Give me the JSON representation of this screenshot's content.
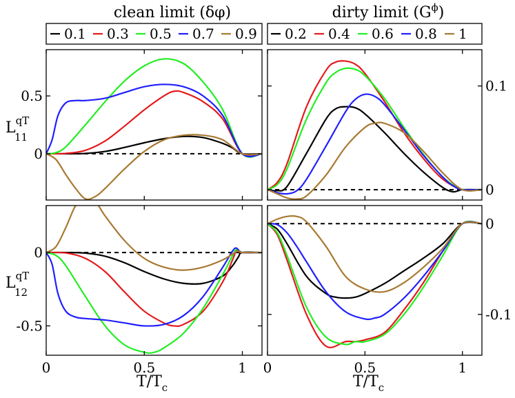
{
  "figure": {
    "left_title": "clean limit (δφ)",
    "right_title": "dirty limit (G",
    "right_title_sup": "ϕ",
    "right_title_end": ")",
    "xlabel_main": "T/T",
    "xlabel_sub": "c",
    "ylabel_top_main": "L",
    "ylabel_top_sup": "qT",
    "ylabel_top_sub": "11",
    "ylabel_bot_main": "L",
    "ylabel_bot_sup": "qT",
    "ylabel_bot_sub": "12"
  },
  "legend_left": [
    {
      "label": "0.1",
      "color": "#000000"
    },
    {
      "label": "0.3",
      "color": "#e41a1c"
    },
    {
      "label": "0.5",
      "color": "#22ee22"
    },
    {
      "label": "0.7",
      "color": "#1f1fff"
    },
    {
      "label": "0.9",
      "color": "#a87932"
    }
  ],
  "legend_right": [
    {
      "label": "0.2",
      "color": "#000000"
    },
    {
      "label": "0.4",
      "color": "#e41a1c"
    },
    {
      "label": "0.6",
      "color": "#22ee22"
    },
    {
      "label": "0.8",
      "color": "#1f1fff"
    },
    {
      "label": "1",
      "color": "#a87932"
    }
  ],
  "chart_data": [
    {
      "type": "line",
      "panel": "top-left",
      "xlim": [
        0,
        1.1
      ],
      "ylim": [
        -0.4,
        0.9
      ],
      "xticks": [
        {
          "v": 0,
          "label": "0"
        },
        {
          "v": 0.5,
          "label": "0.5"
        },
        {
          "v": 1,
          "label": "1"
        }
      ],
      "yticks": [
        {
          "v": 0,
          "label": "0"
        },
        {
          "v": 0.5,
          "label": "0.5"
        }
      ],
      "yaxis_side": "left",
      "show_xtick_labels": false,
      "zero_line": true,
      "series": [
        {
          "name": "0.1",
          "color": "#000000",
          "x": [
            0,
            0.1,
            0.2,
            0.3,
            0.4,
            0.5,
            0.6,
            0.7,
            0.8,
            0.9,
            0.95,
            1.0,
            1.1
          ],
          "y": [
            0,
            0,
            0.003,
            0.02,
            0.055,
            0.095,
            0.13,
            0.15,
            0.14,
            0.09,
            0.05,
            0,
            0
          ]
        },
        {
          "name": "0.3",
          "color": "#e41a1c",
          "x": [
            0,
            0.1,
            0.2,
            0.3,
            0.4,
            0.5,
            0.6,
            0.65,
            0.7,
            0.8,
            0.9,
            1.0,
            1.1
          ],
          "y": [
            0,
            0.003,
            0.03,
            0.11,
            0.24,
            0.38,
            0.5,
            0.54,
            0.53,
            0.45,
            0.3,
            0,
            0
          ]
        },
        {
          "name": "0.5",
          "color": "#22ee22",
          "x": [
            0,
            0.05,
            0.1,
            0.2,
            0.3,
            0.4,
            0.5,
            0.6,
            0.7,
            0.8,
            0.9,
            1.0,
            1.1
          ],
          "y": [
            0,
            0.01,
            0.06,
            0.25,
            0.45,
            0.63,
            0.76,
            0.82,
            0.78,
            0.62,
            0.38,
            0,
            0
          ]
        },
        {
          "name": "0.7",
          "color": "#1f1fff",
          "x": [
            0,
            0.03,
            0.06,
            0.1,
            0.15,
            0.2,
            0.3,
            0.4,
            0.5,
            0.6,
            0.7,
            0.8,
            0.9,
            1.0,
            1.1
          ],
          "y": [
            0,
            0.12,
            0.33,
            0.44,
            0.46,
            0.46,
            0.48,
            0.53,
            0.58,
            0.6,
            0.58,
            0.5,
            0.33,
            0,
            0
          ]
        },
        {
          "name": "0.9",
          "color": "#a87932",
          "x": [
            0,
            0.05,
            0.1,
            0.15,
            0.2,
            0.25,
            0.3,
            0.4,
            0.5,
            0.6,
            0.7,
            0.8,
            0.9,
            1.0,
            1.1
          ],
          "y": [
            0,
            -0.05,
            -0.18,
            -0.3,
            -0.39,
            -0.37,
            -0.3,
            -0.13,
            0.02,
            0.12,
            0.16,
            0.16,
            0.12,
            0,
            0
          ]
        }
      ]
    },
    {
      "type": "line",
      "panel": "top-right",
      "xlim": [
        0,
        1.1
      ],
      "ylim": [
        -0.01,
        0.135
      ],
      "xticks": [
        {
          "v": 0,
          "label": "0"
        },
        {
          "v": 0.5,
          "label": "0.5"
        },
        {
          "v": 1,
          "label": "1"
        }
      ],
      "yticks": [
        {
          "v": 0,
          "label": "0"
        },
        {
          "v": 0.1,
          "label": "0.1"
        }
      ],
      "yaxis_side": "right",
      "show_xtick_labels": false,
      "zero_line": true,
      "series": [
        {
          "name": "0.2",
          "color": "#000000",
          "x": [
            0,
            0.05,
            0.1,
            0.2,
            0.3,
            0.35,
            0.4,
            0.45,
            0.5,
            0.6,
            0.7,
            0.8,
            0.9,
            0.95,
            0.98,
            1.0,
            1.1
          ],
          "y": [
            0,
            -0.001,
            0.003,
            0.035,
            0.068,
            0.078,
            0.08,
            0.079,
            0.073,
            0.055,
            0.035,
            0.017,
            0.002,
            -0.002,
            -0.001,
            0,
            0
          ]
        },
        {
          "name": "0.4",
          "color": "#e41a1c",
          "x": [
            0,
            0.05,
            0.1,
            0.2,
            0.3,
            0.35,
            0.4,
            0.45,
            0.5,
            0.6,
            0.7,
            0.8,
            0.9,
            1.0,
            1.1
          ],
          "y": [
            0,
            0.007,
            0.025,
            0.08,
            0.115,
            0.123,
            0.124,
            0.121,
            0.112,
            0.085,
            0.055,
            0.03,
            0.01,
            0,
            0
          ]
        },
        {
          "name": "0.6",
          "color": "#22ee22",
          "x": [
            0,
            0.05,
            0.1,
            0.2,
            0.3,
            0.35,
            0.4,
            0.45,
            0.5,
            0.6,
            0.7,
            0.8,
            0.9,
            1.0,
            1.1
          ],
          "y": [
            0,
            0.005,
            0.02,
            0.068,
            0.103,
            0.113,
            0.117,
            0.116,
            0.11,
            0.088,
            0.06,
            0.034,
            0.012,
            0,
            0
          ]
        },
        {
          "name": "0.8",
          "color": "#1f1fff",
          "x": [
            0,
            0.05,
            0.1,
            0.15,
            0.2,
            0.3,
            0.4,
            0.45,
            0.5,
            0.55,
            0.6,
            0.7,
            0.8,
            0.9,
            0.95,
            1.0,
            1.1
          ],
          "y": [
            0,
            -0.003,
            -0.004,
            -0.001,
            0.01,
            0.042,
            0.075,
            0.087,
            0.092,
            0.09,
            0.082,
            0.058,
            0.033,
            0.012,
            0.004,
            0,
            0
          ]
        },
        {
          "name": "1",
          "color": "#a87932",
          "x": [
            0,
            0.05,
            0.1,
            0.15,
            0.2,
            0.3,
            0.4,
            0.5,
            0.55,
            0.6,
            0.7,
            0.8,
            0.9,
            1.0,
            1.1
          ],
          "y": [
            0,
            -0.004,
            -0.008,
            -0.009,
            -0.006,
            0.014,
            0.041,
            0.06,
            0.064,
            0.064,
            0.055,
            0.037,
            0.016,
            0,
            0
          ]
        }
      ]
    },
    {
      "type": "line",
      "panel": "bottom-left",
      "xlim": [
        0,
        1.1
      ],
      "ylim": [
        -0.7,
        0.32
      ],
      "xticks": [
        {
          "v": 0,
          "label": "0"
        },
        {
          "v": 0.5,
          "label": "0.5"
        },
        {
          "v": 1,
          "label": "1"
        }
      ],
      "yticks": [
        {
          "v": 0,
          "label": "0"
        },
        {
          "v": -0.5,
          "label": "-0.5"
        }
      ],
      "yaxis_side": "left",
      "show_xtick_labels": true,
      "zero_line": true,
      "series": [
        {
          "name": "0.1",
          "color": "#000000",
          "x": [
            0,
            0.1,
            0.2,
            0.3,
            0.4,
            0.5,
            0.6,
            0.7,
            0.8,
            0.9,
            0.95,
            0.98,
            1.0,
            1.1
          ],
          "y": [
            0,
            0,
            -0.004,
            -0.025,
            -0.07,
            -0.13,
            -0.18,
            -0.21,
            -0.21,
            -0.16,
            -0.09,
            -0.03,
            0,
            0
          ]
        },
        {
          "name": "0.3",
          "color": "#e41a1c",
          "x": [
            0,
            0.1,
            0.2,
            0.3,
            0.4,
            0.5,
            0.6,
            0.65,
            0.7,
            0.8,
            0.9,
            0.95,
            0.97,
            1.0,
            1.1
          ],
          "y": [
            0,
            -0.003,
            -0.04,
            -0.13,
            -0.27,
            -0.4,
            -0.48,
            -0.5,
            -0.49,
            -0.4,
            -0.2,
            -0.05,
            0.01,
            0,
            0
          ]
        },
        {
          "name": "0.5",
          "color": "#22ee22",
          "x": [
            0,
            0.05,
            0.1,
            0.2,
            0.3,
            0.4,
            0.5,
            0.55,
            0.6,
            0.7,
            0.8,
            0.9,
            0.95,
            0.97,
            1.0,
            1.1
          ],
          "y": [
            0,
            -0.02,
            -0.09,
            -0.3,
            -0.5,
            -0.63,
            -0.68,
            -0.68,
            -0.65,
            -0.55,
            -0.38,
            -0.15,
            -0.02,
            0.02,
            0,
            0
          ]
        },
        {
          "name": "0.7",
          "color": "#1f1fff",
          "x": [
            0,
            0.03,
            0.06,
            0.1,
            0.15,
            0.2,
            0.3,
            0.4,
            0.5,
            0.6,
            0.7,
            0.8,
            0.9,
            0.95,
            0.97,
            1.0,
            1.1
          ],
          "y": [
            0,
            -0.08,
            -0.28,
            -0.4,
            -0.44,
            -0.45,
            -0.46,
            -0.48,
            -0.5,
            -0.49,
            -0.43,
            -0.3,
            -0.1,
            0.01,
            0.03,
            0,
            0
          ]
        },
        {
          "name": "0.9",
          "color": "#a87932",
          "x": [
            0,
            0.05,
            0.1,
            0.15,
            0.2,
            0.25,
            0.3,
            0.4,
            0.5,
            0.6,
            0.7,
            0.8,
            0.9,
            0.95,
            0.98,
            1.0,
            1.1
          ],
          "y": [
            0,
            0.04,
            0.17,
            0.32,
            0.38,
            0.35,
            0.25,
            0.08,
            -0.04,
            -0.1,
            -0.12,
            -0.1,
            -0.05,
            -0.01,
            0.01,
            0,
            0
          ]
        }
      ]
    },
    {
      "type": "line",
      "panel": "bottom-right",
      "xlim": [
        0,
        1.1
      ],
      "ylim": [
        -0.145,
        0.02
      ],
      "xticks": [
        {
          "v": 0,
          "label": "0"
        },
        {
          "v": 0.5,
          "label": "0.5"
        },
        {
          "v": 1,
          "label": "1"
        }
      ],
      "yticks": [
        {
          "v": 0,
          "label": "0"
        },
        {
          "v": -0.1,
          "label": "-0.1"
        }
      ],
      "yaxis_side": "right",
      "show_xtick_labels": true,
      "zero_line": true,
      "series": [
        {
          "name": "0.2",
          "color": "#000000",
          "x": [
            0,
            0.05,
            0.1,
            0.2,
            0.3,
            0.35,
            0.4,
            0.45,
            0.5,
            0.6,
            0.7,
            0.8,
            0.9,
            1.0,
            1.1
          ],
          "y": [
            0,
            -0.006,
            -0.022,
            -0.058,
            -0.077,
            -0.081,
            -0.082,
            -0.081,
            -0.077,
            -0.066,
            -0.052,
            -0.038,
            -0.022,
            0,
            0
          ]
        },
        {
          "name": "0.4",
          "color": "#e41a1c",
          "x": [
            0,
            0.05,
            0.1,
            0.2,
            0.3,
            0.4,
            0.45,
            0.5,
            0.6,
            0.7,
            0.8,
            0.9,
            1.0,
            1.1
          ],
          "y": [
            0,
            -0.012,
            -0.04,
            -0.1,
            -0.135,
            -0.13,
            -0.13,
            -0.128,
            -0.12,
            -0.095,
            -0.065,
            -0.03,
            0,
            0
          ]
        },
        {
          "name": "0.6",
          "color": "#22ee22",
          "x": [
            0,
            0.05,
            0.1,
            0.2,
            0.3,
            0.4,
            0.45,
            0.5,
            0.6,
            0.7,
            0.8,
            0.9,
            1.0,
            1.1
          ],
          "y": [
            0,
            -0.01,
            -0.035,
            -0.092,
            -0.125,
            -0.133,
            -0.13,
            -0.13,
            -0.122,
            -0.1,
            -0.07,
            -0.035,
            0,
            0
          ]
        },
        {
          "name": "0.8",
          "color": "#1f1fff",
          "x": [
            0,
            0.05,
            0.1,
            0.15,
            0.2,
            0.3,
            0.4,
            0.5,
            0.55,
            0.6,
            0.7,
            0.8,
            0.9,
            1.0,
            1.1
          ],
          "y": [
            0,
            -0.001,
            -0.01,
            -0.025,
            -0.042,
            -0.075,
            -0.097,
            -0.105,
            -0.104,
            -0.1,
            -0.082,
            -0.058,
            -0.03,
            0,
            0
          ]
        },
        {
          "name": "1",
          "color": "#a87932",
          "x": [
            0,
            0.05,
            0.1,
            0.15,
            0.2,
            0.3,
            0.4,
            0.5,
            0.6,
            0.7,
            0.8,
            0.9,
            1.0,
            1.1
          ],
          "y": [
            0,
            0.005,
            0.008,
            0.008,
            0.002,
            -0.025,
            -0.058,
            -0.072,
            -0.075,
            -0.065,
            -0.048,
            -0.027,
            0,
            0
          ]
        }
      ]
    }
  ]
}
